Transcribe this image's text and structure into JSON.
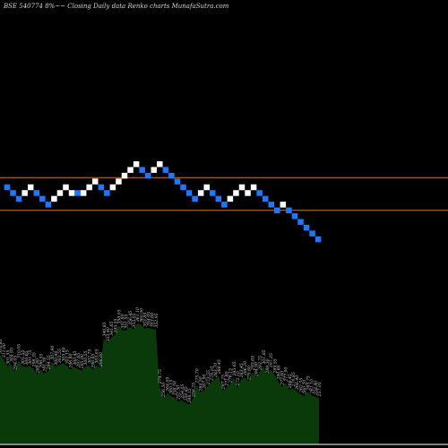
{
  "chart_data": {
    "type": "renko",
    "title": "BSE 540774  8%~~  Closing Daily data  Renko  charts MunafaSutra.com",
    "colors": {
      "background": "#000000",
      "up_brick": "#ffffff",
      "down_brick": "#1e78ff",
      "reference_line": "#c87828",
      "volume_fill": "#0a3a0a",
      "volume_text": "#cfcfcf",
      "axis_line": "#ffffff"
    },
    "reference_lines": [
      300,
      283
    ],
    "bricks": [
      {
        "d": "down",
        "v": 295
      },
      {
        "d": "down",
        "v": 292
      },
      {
        "d": "down",
        "v": 289
      },
      {
        "d": "up",
        "v": 292
      },
      {
        "d": "up",
        "v": 295
      },
      {
        "d": "down",
        "v": 292
      },
      {
        "d": "down",
        "v": 289
      },
      {
        "d": "down",
        "v": 286
      },
      {
        "d": "up",
        "v": 289
      },
      {
        "d": "up",
        "v": 292
      },
      {
        "d": "up",
        "v": 295
      },
      {
        "d": "up",
        "v": 292
      },
      {
        "d": "down",
        "v": 292
      },
      {
        "d": "up",
        "v": 292
      },
      {
        "d": "up",
        "v": 295
      },
      {
        "d": "up",
        "v": 298
      },
      {
        "d": "down",
        "v": 295
      },
      {
        "d": "down",
        "v": 292
      },
      {
        "d": "up",
        "v": 295
      },
      {
        "d": "up",
        "v": 298
      },
      {
        "d": "up",
        "v": 301
      },
      {
        "d": "up",
        "v": 304
      },
      {
        "d": "up",
        "v": 307
      },
      {
        "d": "down",
        "v": 304
      },
      {
        "d": "down",
        "v": 301
      },
      {
        "d": "up",
        "v": 304
      },
      {
        "d": "up",
        "v": 307
      },
      {
        "d": "down",
        "v": 304
      },
      {
        "d": "down",
        "v": 301
      },
      {
        "d": "down",
        "v": 298
      },
      {
        "d": "down",
        "v": 295
      },
      {
        "d": "down",
        "v": 292
      },
      {
        "d": "down",
        "v": 289
      },
      {
        "d": "up",
        "v": 292
      },
      {
        "d": "up",
        "v": 295
      },
      {
        "d": "down",
        "v": 292
      },
      {
        "d": "down",
        "v": 289
      },
      {
        "d": "down",
        "v": 286
      },
      {
        "d": "up",
        "v": 289
      },
      {
        "d": "up",
        "v": 292
      },
      {
        "d": "up",
        "v": 295
      },
      {
        "d": "up",
        "v": 292
      },
      {
        "d": "up",
        "v": 295
      },
      {
        "d": "down",
        "v": 292
      },
      {
        "d": "down",
        "v": 289
      },
      {
        "d": "down",
        "v": 286
      },
      {
        "d": "down",
        "v": 283
      },
      {
        "d": "up",
        "v": 286
      },
      {
        "d": "down",
        "v": 283
      },
      {
        "d": "down",
        "v": 280
      },
      {
        "d": "down",
        "v": 277
      },
      {
        "d": "down",
        "v": 274
      },
      {
        "d": "down",
        "v": 271
      },
      {
        "d": "down",
        "v": 268
      }
    ],
    "volume_labels": [
      "316.85",
      "311.00",
      "301.55",
      "304.95",
      "294.05",
      "310.05",
      "301.55",
      "300.65",
      "301.75",
      "298.35",
      "289.80",
      "296.55",
      "291.70",
      "294.55",
      "307.90",
      "300.40",
      "303.55",
      "305.60",
      "302.15",
      "296.80",
      "300.45",
      "297.65",
      "295.90",
      "300.55",
      "302.75",
      "296.65",
      "303.05",
      "298.60",
      "340.65",
      "333.40",
      "341.65",
      "345.55",
      "358.05",
      "351.80",
      "351.55",
      "356.45",
      "353.05",
      "361.10",
      "360.00",
      "353.85",
      "354.95",
      "353.60",
      "352.95",
      "274.75",
      "256.50",
      "264.05",
      "260.15",
      "258.50",
      "252.50",
      "254.05",
      "250.85",
      "248.15",
      "256.25",
      "275.70",
      "264.50",
      "267.90",
      "273.55",
      "279.10",
      "283.70",
      "288.45",
      "267.25",
      "271.80",
      "276.15",
      "285.65",
      "272.10",
      "283.45",
      "286.20",
      "279.80",
      "293.65",
      "284.90",
      "293.75",
      "301.85",
      "289.30",
      "297.25",
      "289.55",
      "280.60",
      "272.60",
      "277.90",
      "268.45",
      "270.85",
      "266.40",
      "262.55",
      "260.20",
      "265.75",
      "261.10",
      "258.90",
      "257.05"
    ]
  }
}
